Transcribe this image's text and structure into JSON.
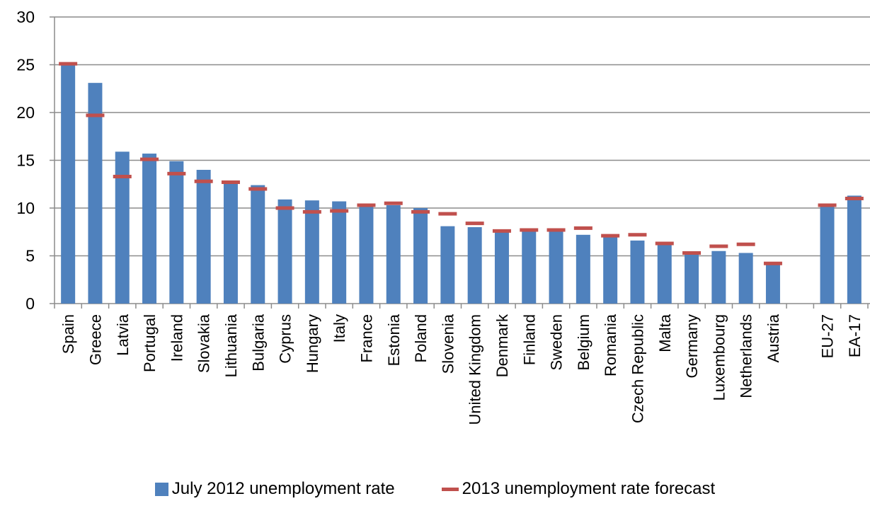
{
  "chart_data": {
    "type": "bar",
    "categories": [
      "Spain",
      "Greece",
      "Latvia",
      "Portugal",
      "Ireland",
      "Slovakia",
      "Lithuania",
      "Bulgaria",
      "Cyprus",
      "Hungary",
      "Italy",
      "France",
      "Estonia",
      "Poland",
      "Slovenia",
      "United Kingdom",
      "Denmark",
      "Finland",
      "Sweden",
      "Belgium",
      "Romania",
      "Czech Republic",
      "Malta",
      "Germany",
      "Luxembourg",
      "Netherlands",
      "Austria",
      "",
      "EU-27",
      "EA-17"
    ],
    "series": [
      {
        "name": "July 2012 unemployment rate",
        "type": "bar",
        "color": "#4F81BD",
        "values": [
          25.1,
          23.1,
          15.9,
          15.7,
          14.9,
          14.0,
          12.8,
          12.4,
          10.9,
          10.8,
          10.7,
          10.3,
          10.3,
          10.0,
          8.1,
          8.0,
          7.7,
          7.6,
          7.6,
          7.2,
          7.0,
          6.6,
          6.2,
          5.3,
          5.5,
          5.3,
          4.2,
          null,
          10.4,
          11.3
        ]
      },
      {
        "name": "2013 unemployment rate forecast",
        "type": "marker",
        "color": "#C0504D",
        "values": [
          25.1,
          19.7,
          13.3,
          15.1,
          13.6,
          12.8,
          12.7,
          12.0,
          10.0,
          9.6,
          9.7,
          10.3,
          10.5,
          9.6,
          9.4,
          8.4,
          7.6,
          7.7,
          7.7,
          7.9,
          7.1,
          7.2,
          6.3,
          5.3,
          6.0,
          6.2,
          4.2,
          null,
          10.3,
          11.0
        ]
      }
    ],
    "ylim": [
      0,
      30
    ],
    "yticks": [
      "0",
      "5",
      "10",
      "15",
      "20",
      "25",
      "30"
    ],
    "grid": true,
    "legend_position": "bottom"
  }
}
